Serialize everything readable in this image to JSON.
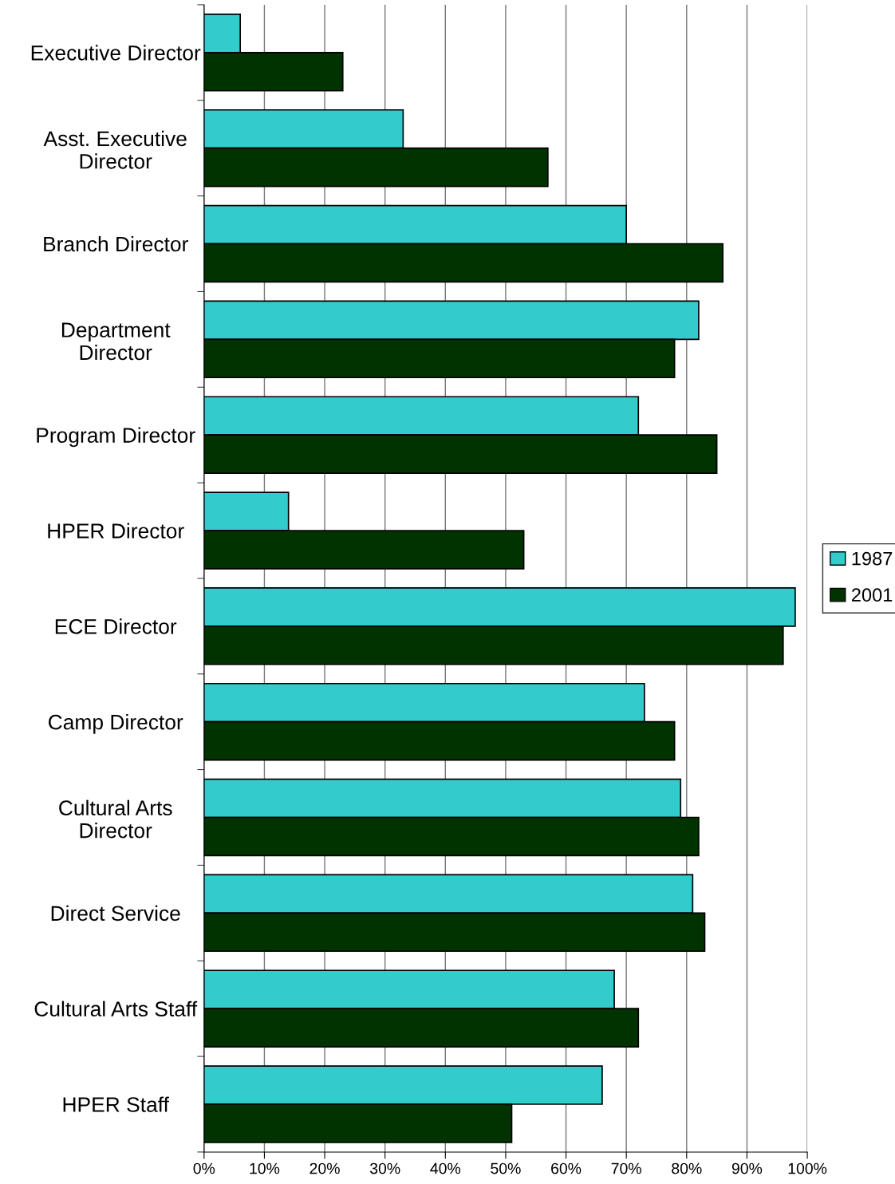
{
  "chart_data": {
    "type": "bar",
    "orientation": "horizontal",
    "categories": [
      "Executive Director",
      "Asst. Executive\nDirector",
      "Branch Director",
      "Department\nDirector",
      "Program Director",
      "HPER Director",
      "ECE Director",
      "Camp Director",
      "Cultural Arts\nDirector",
      "Direct Service",
      "Cultural Arts Staff",
      "HPER Staff"
    ],
    "series": [
      {
        "name": "1987",
        "color": "#33cccc",
        "values": [
          6,
          33,
          70,
          82,
          72,
          14,
          98,
          73,
          79,
          81,
          68,
          66
        ]
      },
      {
        "name": "2001",
        "color": "#003300",
        "values": [
          23,
          57,
          86,
          78,
          85,
          53,
          96,
          78,
          82,
          83,
          72,
          51
        ]
      }
    ],
    "xlim": [
      0,
      100
    ],
    "xticks": [
      {
        "value": 0,
        "label": "0%"
      },
      {
        "value": 10,
        "label": "10%"
      },
      {
        "value": 20,
        "label": "20%"
      },
      {
        "value": 30,
        "label": "30%"
      },
      {
        "value": 40,
        "label": "40%"
      },
      {
        "value": 50,
        "label": "50%"
      },
      {
        "value": 60,
        "label": "60%"
      },
      {
        "value": 70,
        "label": "70%"
      },
      {
        "value": 80,
        "label": "80%"
      },
      {
        "value": 90,
        "label": "90%"
      },
      {
        "value": 100,
        "label": "100%"
      }
    ],
    "grid": "x",
    "legend": "right"
  }
}
